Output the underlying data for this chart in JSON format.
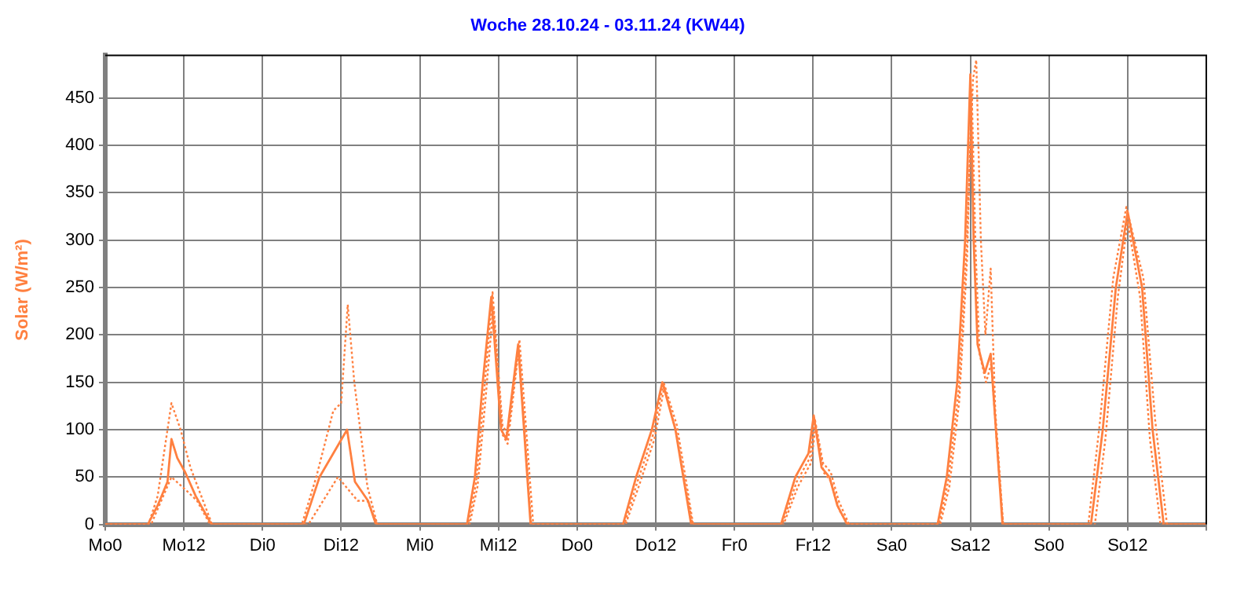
{
  "chart_data": {
    "type": "line",
    "title": "Woche 28.10.24 - 03.11.24 (KW44)",
    "ylabel": "Solar (W/m²)",
    "xlim": [
      "--10-28T00:00",
      "--11-04T00:00"
    ],
    "xticks": [
      {
        "value": "--10-28T00:00",
        "label": "Mo0"
      },
      {
        "value": "--10-28T12:00",
        "label": "Mo12"
      },
      {
        "value": "--10-29T00:00",
        "label": "Di0"
      },
      {
        "value": "--10-29T12:00",
        "label": "Di12"
      },
      {
        "value": "--10-30T00:00",
        "label": "Mi0"
      },
      {
        "value": "--10-30T12:00",
        "label": "Mi12"
      },
      {
        "value": "--10-31T00:00",
        "label": "Do0"
      },
      {
        "value": "--10-31T12:00",
        "label": "Do12"
      },
      {
        "value": "--11-01T00:00",
        "label": "Fr0"
      },
      {
        "value": "--11-01T12:00",
        "label": "Fr12"
      },
      {
        "value": "--11-02T00:00",
        "label": "Sa0"
      },
      {
        "value": "--11-02T12:00",
        "label": "Sa12"
      },
      {
        "value": "--11-03T00:00",
        "label": "So0"
      },
      {
        "value": "--11-03T12:00",
        "label": "So12"
      },
      {
        "value": "--11-04T00:00",
        "label": null
      }
    ],
    "ylim": [
      0,
      495
    ],
    "yticks": [
      0,
      50,
      100,
      150,
      200,
      250,
      300,
      350,
      400,
      450
    ],
    "grid": true,
    "legend": false,
    "marker": "none",
    "series": [
      {
        "color": "#ff8040",
        "line_style": "solid",
        "x": [
          "--10-28T00:00",
          "--10-28T06:30",
          "--10-28T08:00",
          "--10-28T09:30",
          "--10-28T10:06",
          "--10-28T11:00",
          "--10-28T12:12",
          "--10-28T13:48",
          "--10-28T16:12",
          "--10-29T06:18",
          "--10-29T08:42",
          "--10-29T12:54",
          "--10-29T14:06",
          "--10-29T16:06",
          "--10-29T17:18",
          "--10-30T07:12",
          "--10-30T08:24",
          "--10-30T09:36",
          "--10-30T10:54",
          "--10-30T12:24",
          "--10-30T13:12",
          "--10-30T15:00",
          "--10-30T16:54",
          "--10-31T07:00",
          "--10-31T09:00",
          "--10-31T11:24",
          "--10-31T13:00",
          "--10-31T15:00",
          "--10-31T16:12",
          "--10-31T17:24",
          "--11-01T07:06",
          "--11-01T09:18",
          "--11-01T11:18",
          "--11-01T12:06",
          "--11-01T13:18",
          "--11-01T14:30",
          "--11-01T15:42",
          "--11-01T17:12",
          "--11-02T07:00",
          "--11-02T08:24",
          "--11-02T10:00",
          "--11-02T11:12",
          "--11-02T12:00",
          "--11-02T12:30",
          "--11-02T13:06",
          "--11-02T14:12",
          "--11-02T15:06",
          "--11-02T15:54",
          "--11-02T16:54",
          "--11-03T06:24",
          "--11-03T08:12",
          "--11-03T10:12",
          "--11-03T12:00",
          "--11-03T14:12",
          "--11-03T15:48",
          "--11-03T17:30",
          "--11-04T00:00"
        ],
        "values": [
          0,
          0,
          20,
          45,
          90,
          70,
          55,
          30,
          0,
          0,
          50,
          100,
          45,
          25,
          0,
          0,
          50,
          150,
          240,
          100,
          90,
          190,
          0,
          0,
          50,
          100,
          150,
          100,
          50,
          0,
          0,
          50,
          75,
          115,
          60,
          50,
          20,
          0,
          0,
          50,
          150,
          300,
          475,
          300,
          190,
          160,
          180,
          100,
          0,
          0,
          100,
          250,
          330,
          250,
          100,
          0,
          0
        ]
      },
      {
        "color": "#ff8040",
        "line_style": "dotted",
        "x": [
          "--10-28T00:00",
          "--10-28T06:36",
          "--10-28T08:00",
          "--10-28T10:06",
          "--10-28T11:30",
          "--10-28T13:00",
          "--10-28T16:18",
          "--10-29T06:00",
          "--10-29T08:12",
          "--10-29T10:48",
          "--10-29T12:00",
          "--10-29T13:00",
          "--10-29T14:00",
          "--10-29T16:00",
          "--10-29T17:30",
          "--10-30T07:24",
          "--10-30T08:36",
          "--10-30T09:48",
          "--10-30T11:06",
          "--10-30T12:36",
          "--10-30T13:24",
          "--10-30T15:12",
          "--10-30T17:18",
          "--10-31T07:12",
          "--10-31T09:12",
          "--10-31T11:36",
          "--10-31T13:12",
          "--10-31T15:12",
          "--10-31T16:24",
          "--10-31T17:42",
          "--11-01T07:18",
          "--11-01T09:30",
          "--11-01T11:30",
          "--11-01T12:18",
          "--11-01T13:30",
          "--11-01T14:42",
          "--11-01T15:54",
          "--11-01T17:30",
          "--11-02T07:12",
          "--11-02T08:36",
          "--11-02T10:12",
          "--11-02T11:24",
          "--11-02T12:24",
          "--11-02T12:54",
          "--11-02T13:36",
          "--11-02T14:18",
          "--11-02T15:06",
          "--11-02T15:48",
          "--11-02T17:00",
          "--11-03T06:00",
          "--11-03T07:48",
          "--11-03T09:48",
          "--11-03T11:48",
          "--11-03T14:24",
          "--11-03T16:12",
          "--11-03T18:00",
          "--11-04T00:00"
        ],
        "values": [
          0,
          0,
          30,
          128,
          100,
          60,
          0,
          0,
          50,
          120,
          128,
          232,
          150,
          40,
          0,
          0,
          45,
          140,
          245,
          105,
          95,
          195,
          0,
          0,
          45,
          95,
          150,
          105,
          55,
          0,
          0,
          45,
          70,
          110,
          65,
          55,
          25,
          0,
          0,
          45,
          140,
          290,
          470,
          490,
          300,
          200,
          270,
          120,
          0,
          0,
          110,
          260,
          335,
          260,
          110,
          0,
          0
        ]
      },
      {
        "color": "#ff8040",
        "line_style": "dotted",
        "x": [
          "--10-28T00:00",
          "--10-28T07:00",
          "--10-28T10:06",
          "--10-28T12:30",
          "--10-28T14:00",
          "--10-28T16:00",
          "--10-29T07:00",
          "--10-29T11:30",
          "--10-29T14:30",
          "--10-29T16:00",
          "--10-29T17:30",
          "--10-30T07:36",
          "--10-30T08:48",
          "--10-30T10:00",
          "--10-30T11:12",
          "--10-30T12:36",
          "--10-30T13:24",
          "--10-30T15:06",
          "--10-30T17:00",
          "--10-31T07:24",
          "--10-31T09:24",
          "--10-31T11:48",
          "--10-31T13:18",
          "--10-31T15:12",
          "--10-31T16:24",
          "--10-31T17:36",
          "--11-01T07:30",
          "--11-01T09:42",
          "--11-01T11:42",
          "--11-01T12:24",
          "--11-01T13:36",
          "--11-01T14:48",
          "--11-01T16:00",
          "--11-01T17:24",
          "--11-02T07:24",
          "--11-02T08:48",
          "--11-02T10:18",
          "--11-02T11:30",
          "--11-02T12:12",
          "--11-02T12:48",
          "--11-02T13:24",
          "--11-02T14:24",
          "--11-02T15:12",
          "--11-02T16:00",
          "--11-02T17:00",
          "--11-03T07:00",
          "--11-03T08:36",
          "--11-03T10:30",
          "--11-03T12:00",
          "--11-03T13:54",
          "--11-03T15:24",
          "--11-03T17:00",
          "--11-04T00:00"
        ],
        "values": [
          0,
          0,
          50,
          35,
          25,
          0,
          0,
          50,
          25,
          25,
          0,
          0,
          40,
          130,
          230,
          95,
          85,
          185,
          0,
          0,
          40,
          90,
          145,
          95,
          45,
          0,
          0,
          40,
          65,
          105,
          55,
          45,
          15,
          0,
          0,
          40,
          130,
          280,
          460,
          290,
          180,
          150,
          170,
          90,
          0,
          0,
          90,
          240,
          320,
          240,
          90,
          0,
          0
        ]
      }
    ]
  }
}
